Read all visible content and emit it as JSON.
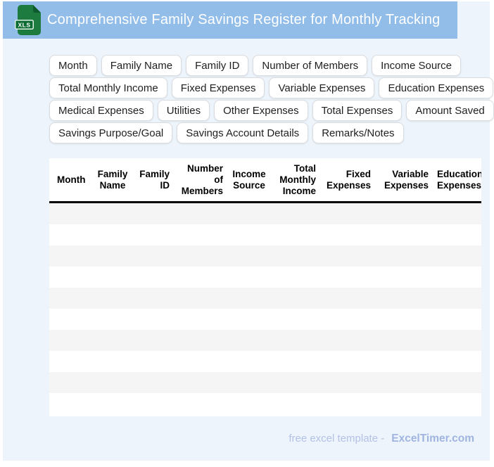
{
  "window": {
    "title": "Comprehensive Family Savings Register for Monthly Tracking"
  },
  "header": {
    "icon": "xls-file-icon",
    "icon_badge": "XLS"
  },
  "chip_rows": [
    [
      "Month",
      "Family Name",
      "Family ID",
      "Number of Members",
      "Income Source"
    ],
    [
      "Total Monthly Income",
      "Fixed Expenses",
      "Variable Expenses",
      "Education Expenses"
    ],
    [
      "Medical Expenses",
      "Utilities",
      "Other Expenses",
      "Total Expenses",
      "Amount Saved"
    ],
    [
      "Savings Purpose/Goal",
      "Savings Account Details",
      "Remarks/Notes"
    ]
  ],
  "table": {
    "column_headers": [
      "Month",
      "Family\nName",
      "Family\nID",
      "Number\nof\nMembers",
      "Income\nSource",
      "Total\nMonthly\nIncome",
      "Fixed\nExpenses",
      "Variable\nExpenses",
      "Education\nExpenses"
    ],
    "empty_row_count": 10
  },
  "footer": {
    "label": "free excel template -",
    "brand": "ExcelTimer.com"
  },
  "colors": {
    "titlebar_bg": "#92bde8",
    "page_bg": "#edf4fc",
    "stripe": "#f5f5f5",
    "header_divider": "#000000",
    "icon_green": "#1e7b40",
    "icon_green_dark": "#0e5a2d",
    "footer_text": "#b3c1e6",
    "footer_brand": "#a0b4e0"
  }
}
